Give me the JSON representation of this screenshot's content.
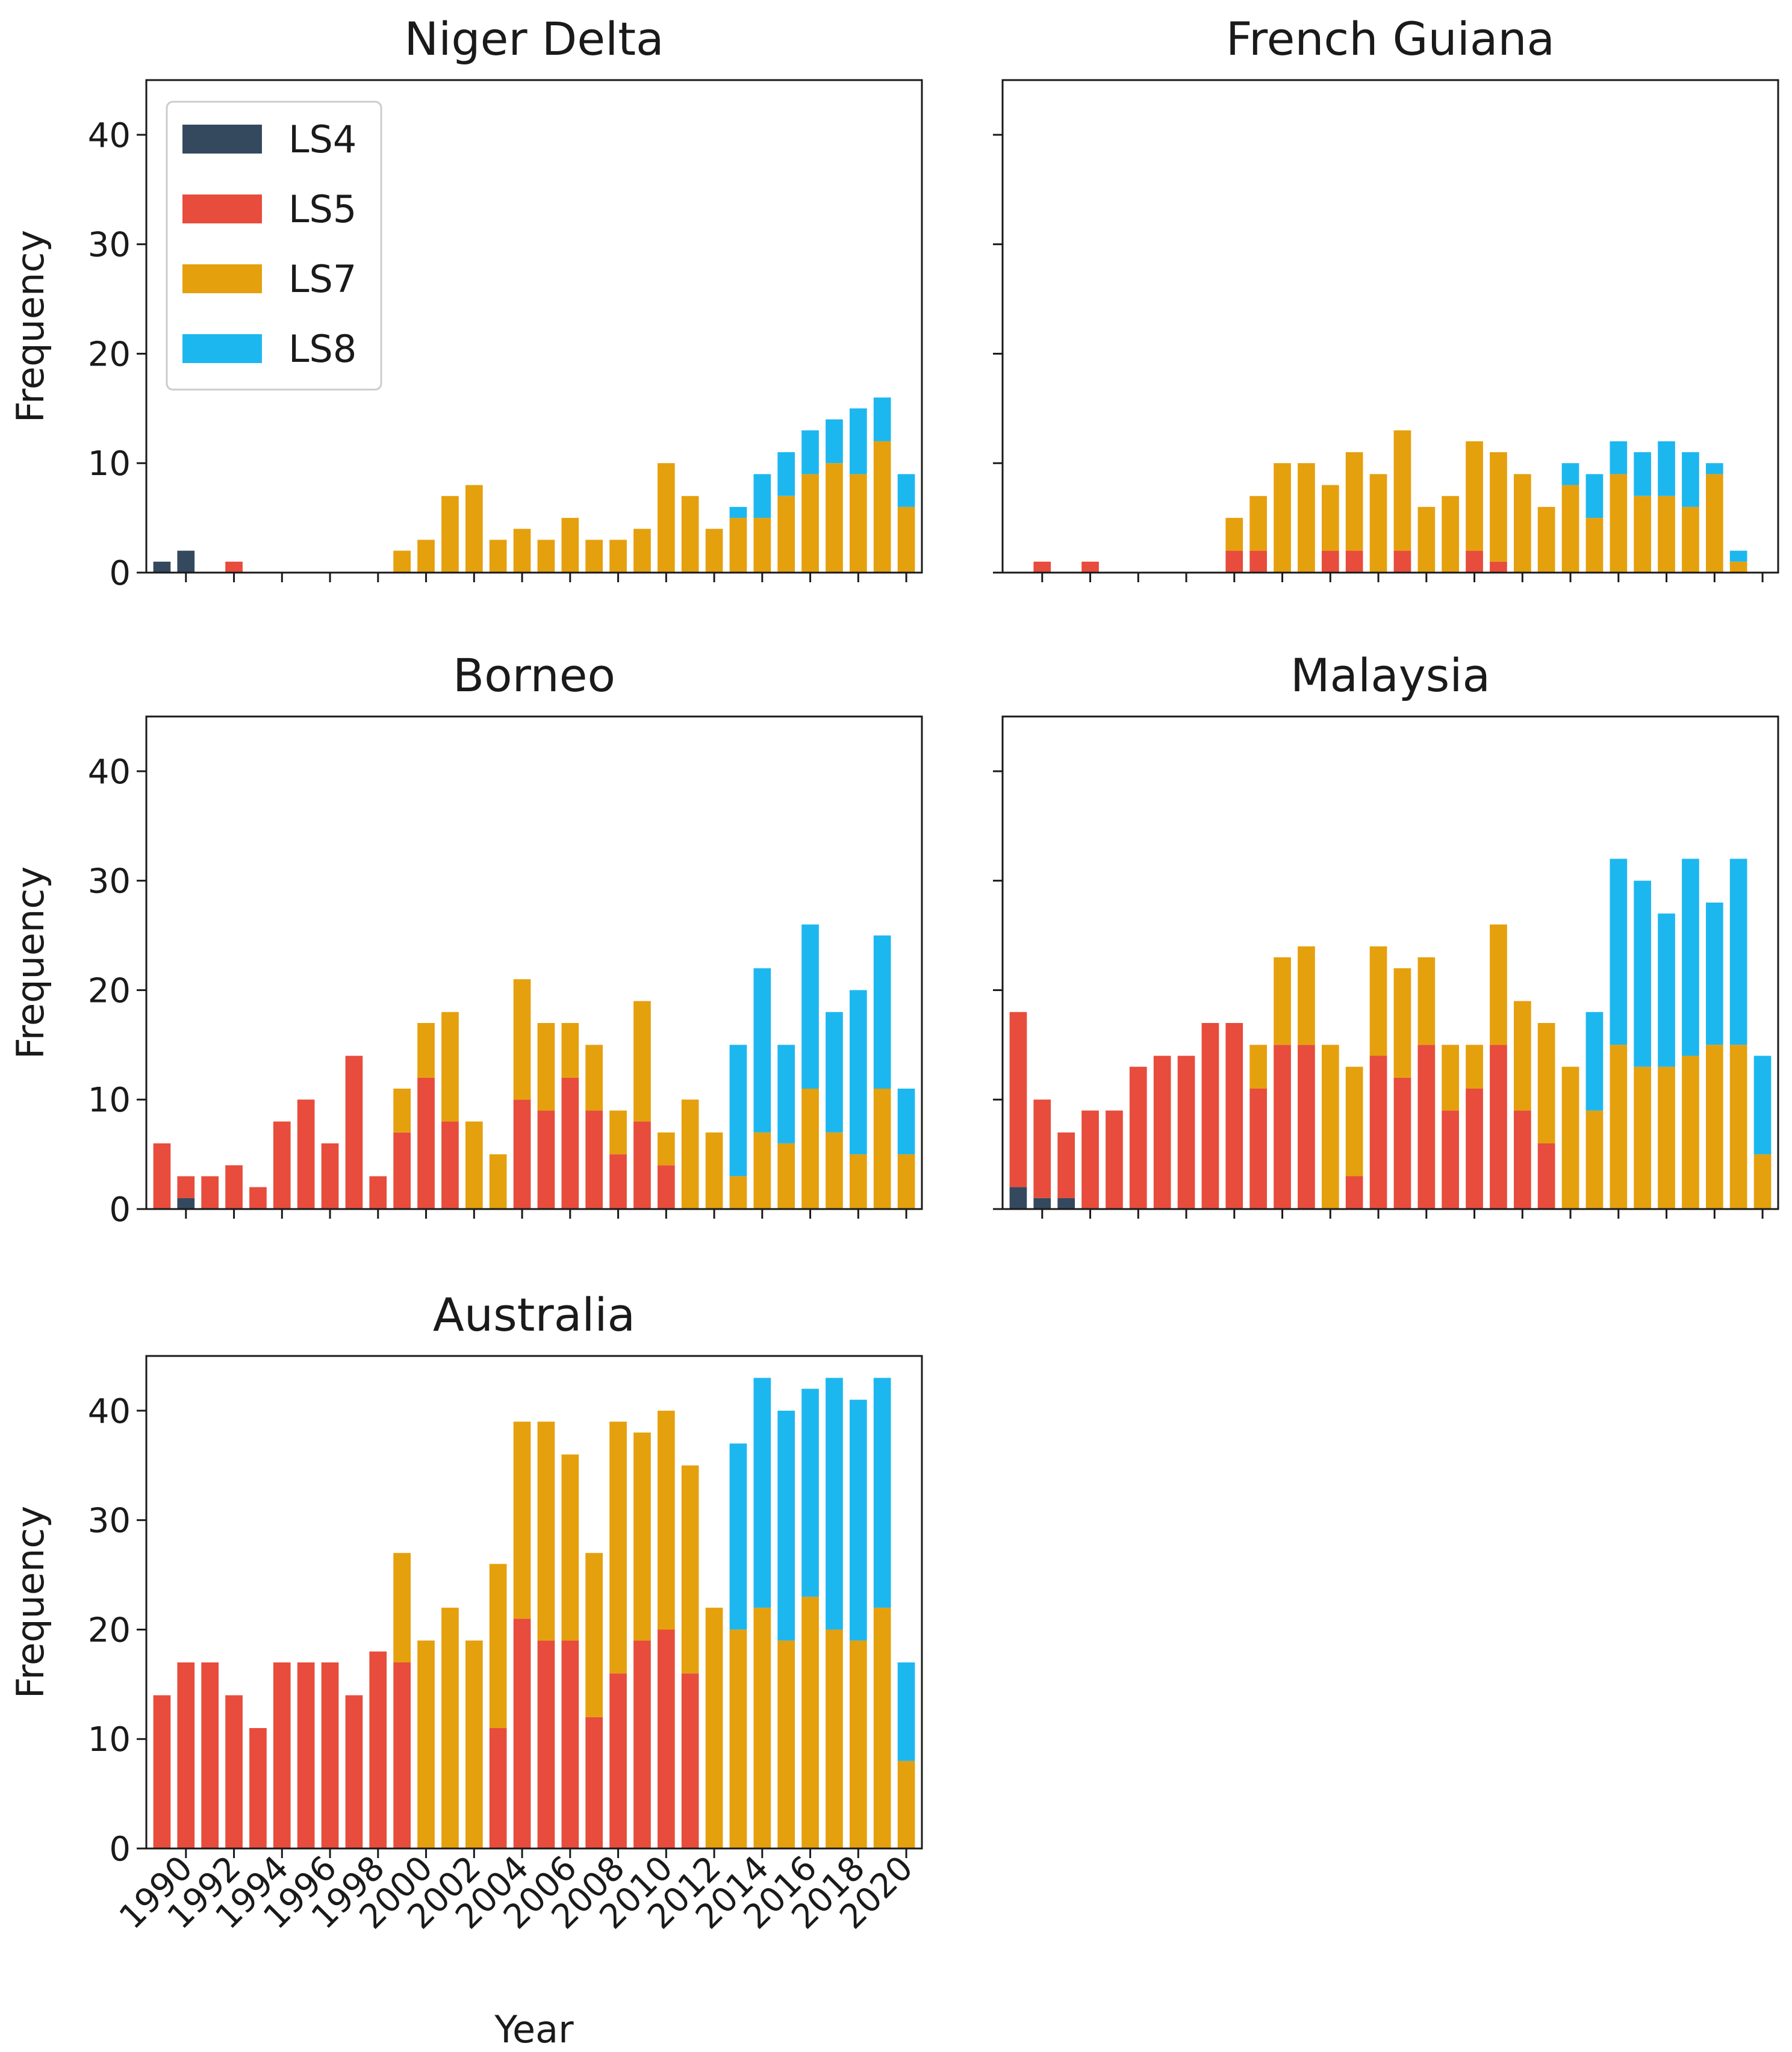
{
  "figure": {
    "xlabel": "Year",
    "ylabel": "Frequency",
    "x_tick_labels": [
      "1990",
      "1992",
      "1994",
      "1996",
      "1998",
      "2000",
      "2002",
      "2004",
      "2006",
      "2008",
      "2010",
      "2012",
      "2014",
      "2016",
      "2018",
      "2020"
    ],
    "y_tick_labels": [
      "0",
      "10",
      "20",
      "30",
      "40"
    ]
  },
  "legend": {
    "placement": "upper-left of first panel",
    "entries": [
      {
        "label": "LS4",
        "color": "#34495e"
      },
      {
        "label": "LS5",
        "color": "#e74c3c"
      },
      {
        "label": "LS7",
        "color": "#e5a00d"
      },
      {
        "label": "LS8",
        "color": "#1db7f0"
      }
    ]
  },
  "chart_data": [
    {
      "type": "bar",
      "stacked": true,
      "title": "Niger Delta",
      "xlabel": "",
      "ylabel": "Frequency",
      "ylim": [
        0,
        45
      ],
      "years": [
        1989,
        1990,
        1991,
        1992,
        1993,
        1994,
        1995,
        1996,
        1997,
        1998,
        1999,
        2000,
        2001,
        2002,
        2003,
        2004,
        2005,
        2006,
        2007,
        2008,
        2009,
        2010,
        2011,
        2012,
        2013,
        2014,
        2015,
        2016,
        2017,
        2018,
        2019,
        2020
      ],
      "series": [
        {
          "name": "LS4",
          "values": [
            1,
            2,
            0,
            0,
            0,
            0,
            0,
            0,
            0,
            0,
            0,
            0,
            0,
            0,
            0,
            0,
            0,
            0,
            0,
            0,
            0,
            0,
            0,
            0,
            0,
            0,
            0,
            0,
            0,
            0,
            0,
            0
          ]
        },
        {
          "name": "LS5",
          "values": [
            0,
            0,
            0,
            1,
            0,
            0,
            0,
            0,
            0,
            0,
            0,
            0,
            0,
            0,
            0,
            0,
            0,
            0,
            0,
            0,
            0,
            0,
            0,
            0,
            0,
            0,
            0,
            0,
            0,
            0,
            0,
            0
          ]
        },
        {
          "name": "LS7",
          "values": [
            0,
            0,
            0,
            0,
            0,
            0,
            0,
            0,
            0,
            0,
            2,
            3,
            7,
            8,
            3,
            4,
            3,
            5,
            3,
            3,
            4,
            10,
            7,
            4,
            5,
            5,
            7,
            9,
            10,
            9,
            12,
            6
          ]
        },
        {
          "name": "LS8",
          "values": [
            0,
            0,
            0,
            0,
            0,
            0,
            0,
            0,
            0,
            0,
            0,
            0,
            0,
            0,
            0,
            0,
            0,
            0,
            0,
            0,
            0,
            0,
            0,
            0,
            1,
            4,
            4,
            4,
            4,
            6,
            4,
            3
          ]
        }
      ]
    },
    {
      "type": "bar",
      "stacked": true,
      "title": "French Guiana",
      "xlabel": "",
      "ylabel": "",
      "ylim": [
        0,
        45
      ],
      "years": [
        1989,
        1990,
        1991,
        1992,
        1993,
        1994,
        1995,
        1996,
        1997,
        1998,
        1999,
        2000,
        2001,
        2002,
        2003,
        2004,
        2005,
        2006,
        2007,
        2008,
        2009,
        2010,
        2011,
        2012,
        2013,
        2014,
        2015,
        2016,
        2017,
        2018,
        2019,
        2020
      ],
      "series": [
        {
          "name": "LS4",
          "values": [
            0,
            0,
            0,
            0,
            0,
            0,
            0,
            0,
            0,
            0,
            0,
            0,
            0,
            0,
            0,
            0,
            0,
            0,
            0,
            0,
            0,
            0,
            0,
            0,
            0,
            0,
            0,
            0,
            0,
            0,
            0,
            0
          ]
        },
        {
          "name": "LS5",
          "values": [
            0,
            1,
            0,
            1,
            0,
            0,
            0,
            0,
            0,
            2,
            2,
            0,
            0,
            2,
            2,
            0,
            2,
            0,
            0,
            2,
            1,
            0,
            0,
            0,
            0,
            0,
            0,
            0,
            0,
            0,
            0,
            0
          ]
        },
        {
          "name": "LS7",
          "values": [
            0,
            0,
            0,
            0,
            0,
            0,
            0,
            0,
            0,
            3,
            5,
            10,
            10,
            6,
            9,
            9,
            11,
            6,
            7,
            10,
            10,
            9,
            6,
            8,
            5,
            9,
            7,
            7,
            6,
            9,
            1,
            0
          ]
        },
        {
          "name": "LS8",
          "values": [
            0,
            0,
            0,
            0,
            0,
            0,
            0,
            0,
            0,
            0,
            0,
            0,
            0,
            0,
            0,
            0,
            0,
            0,
            0,
            0,
            0,
            0,
            0,
            2,
            4,
            3,
            4,
            5,
            5,
            1,
            1,
            0
          ]
        }
      ]
    },
    {
      "type": "bar",
      "stacked": true,
      "title": "Borneo",
      "xlabel": "",
      "ylabel": "Frequency",
      "ylim": [
        0,
        45
      ],
      "years": [
        1989,
        1990,
        1991,
        1992,
        1993,
        1994,
        1995,
        1996,
        1997,
        1998,
        1999,
        2000,
        2001,
        2002,
        2003,
        2004,
        2005,
        2006,
        2007,
        2008,
        2009,
        2010,
        2011,
        2012,
        2013,
        2014,
        2015,
        2016,
        2017,
        2018,
        2019,
        2020
      ],
      "series": [
        {
          "name": "LS4",
          "values": [
            0,
            1,
            0,
            0,
            0,
            0,
            0,
            0,
            0,
            0,
            0,
            0,
            0,
            0,
            0,
            0,
            0,
            0,
            0,
            0,
            0,
            0,
            0,
            0,
            0,
            0,
            0,
            0,
            0,
            0,
            0,
            0
          ]
        },
        {
          "name": "LS5",
          "values": [
            6,
            2,
            3,
            4,
            2,
            8,
            10,
            6,
            14,
            3,
            7,
            12,
            8,
            0,
            0,
            10,
            9,
            12,
            9,
            5,
            8,
            4,
            0,
            0,
            0,
            0,
            0,
            0,
            0,
            0,
            0,
            0
          ]
        },
        {
          "name": "LS7",
          "values": [
            0,
            0,
            0,
            0,
            0,
            0,
            0,
            0,
            0,
            0,
            4,
            5,
            10,
            8,
            5,
            11,
            8,
            5,
            6,
            4,
            11,
            3,
            10,
            7,
            3,
            7,
            6,
            11,
            7,
            5,
            11,
            5
          ]
        },
        {
          "name": "LS8",
          "values": [
            0,
            0,
            0,
            0,
            0,
            0,
            0,
            0,
            0,
            0,
            0,
            0,
            0,
            0,
            0,
            0,
            0,
            0,
            0,
            0,
            0,
            0,
            0,
            0,
            12,
            15,
            9,
            15,
            11,
            15,
            14,
            6
          ]
        }
      ]
    },
    {
      "type": "bar",
      "stacked": true,
      "title": "Malaysia",
      "xlabel": "",
      "ylabel": "",
      "ylim": [
        0,
        45
      ],
      "years": [
        1989,
        1990,
        1991,
        1992,
        1993,
        1994,
        1995,
        1996,
        1997,
        1998,
        1999,
        2000,
        2001,
        2002,
        2003,
        2004,
        2005,
        2006,
        2007,
        2008,
        2009,
        2010,
        2011,
        2012,
        2013,
        2014,
        2015,
        2016,
        2017,
        2018,
        2019,
        2020
      ],
      "series": [
        {
          "name": "LS4",
          "values": [
            2,
            1,
            1,
            0,
            0,
            0,
            0,
            0,
            0,
            0,
            0,
            0,
            0,
            0,
            0,
            0,
            0,
            0,
            0,
            0,
            0,
            0,
            0,
            0,
            0,
            0,
            0,
            0,
            0,
            0,
            0,
            0
          ]
        },
        {
          "name": "LS5",
          "values": [
            16,
            9,
            6,
            9,
            9,
            13,
            14,
            14,
            17,
            17,
            11,
            15,
            15,
            0,
            3,
            14,
            12,
            15,
            9,
            11,
            15,
            9,
            6,
            0,
            0,
            0,
            0,
            0,
            0,
            0,
            0,
            0
          ]
        },
        {
          "name": "LS7",
          "values": [
            0,
            0,
            0,
            0,
            0,
            0,
            0,
            0,
            0,
            0,
            4,
            8,
            9,
            15,
            10,
            10,
            10,
            8,
            6,
            4,
            11,
            10,
            11,
            13,
            9,
            15,
            13,
            13,
            14,
            15,
            15,
            5
          ]
        },
        {
          "name": "LS8",
          "values": [
            0,
            0,
            0,
            0,
            0,
            0,
            0,
            0,
            0,
            0,
            0,
            0,
            0,
            0,
            0,
            0,
            0,
            0,
            0,
            0,
            0,
            0,
            0,
            0,
            9,
            17,
            17,
            14,
            18,
            13,
            17,
            9
          ]
        }
      ]
    },
    {
      "type": "bar",
      "stacked": true,
      "title": "Australia",
      "xlabel": "Year",
      "ylabel": "Frequency",
      "ylim": [
        0,
        45
      ],
      "years": [
        1989,
        1990,
        1991,
        1992,
        1993,
        1994,
        1995,
        1996,
        1997,
        1998,
        1999,
        2000,
        2001,
        2002,
        2003,
        2004,
        2005,
        2006,
        2007,
        2008,
        2009,
        2010,
        2011,
        2012,
        2013,
        2014,
        2015,
        2016,
        2017,
        2018,
        2019,
        2020
      ],
      "series": [
        {
          "name": "LS4",
          "values": [
            0,
            0,
            0,
            0,
            0,
            0,
            0,
            0,
            0,
            0,
            0,
            0,
            0,
            0,
            0,
            0,
            0,
            0,
            0,
            0,
            0,
            0,
            0,
            0,
            0,
            0,
            0,
            0,
            0,
            0,
            0,
            0
          ]
        },
        {
          "name": "LS5",
          "values": [
            14,
            17,
            17,
            14,
            11,
            17,
            17,
            17,
            14,
            18,
            17,
            0,
            0,
            0,
            11,
            21,
            19,
            19,
            12,
            16,
            19,
            20,
            16,
            0,
            0,
            0,
            0,
            0,
            0,
            0,
            0,
            0
          ]
        },
        {
          "name": "LS7",
          "values": [
            0,
            0,
            0,
            0,
            0,
            0,
            0,
            0,
            0,
            0,
            10,
            19,
            22,
            19,
            15,
            18,
            20,
            17,
            15,
            23,
            19,
            20,
            19,
            22,
            20,
            22,
            19,
            23,
            20,
            19,
            22,
            8
          ]
        },
        {
          "name": "LS8",
          "values": [
            0,
            0,
            0,
            0,
            0,
            0,
            0,
            0,
            0,
            0,
            0,
            0,
            0,
            0,
            0,
            0,
            0,
            0,
            0,
            0,
            0,
            0,
            0,
            0,
            17,
            21,
            21,
            19,
            23,
            22,
            21,
            9
          ]
        }
      ]
    }
  ]
}
